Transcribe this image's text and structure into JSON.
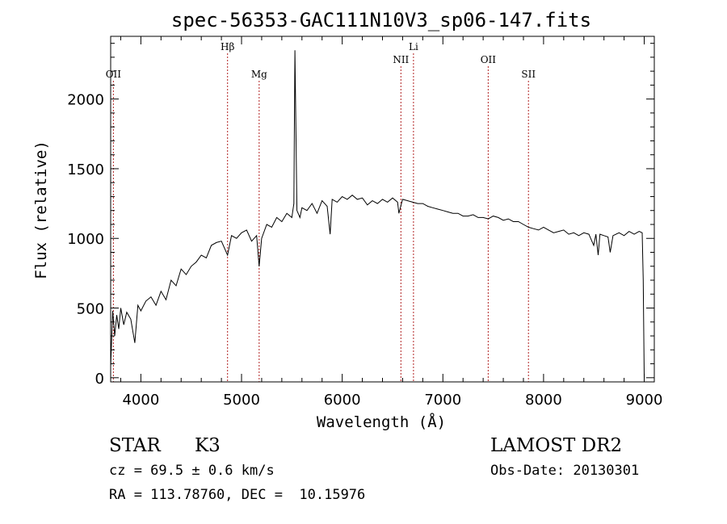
{
  "chart_data": {
    "type": "line",
    "title": "spec-56353-GAC111N10V3_sp06-147.fits",
    "xlabel": "Wavelength (Å)",
    "ylabel": "Flux (relative)",
    "xlim": [
      3700,
      9100
    ],
    "ylim": [
      -30,
      2450
    ],
    "xticks": [
      4000,
      5000,
      6000,
      7000,
      8000,
      9000
    ],
    "yticks": [
      0,
      500,
      1000,
      1500,
      2000
    ],
    "grid": false,
    "lines": [
      {
        "label": "OII",
        "x": 3727,
        "label_level": "low"
      },
      {
        "label": "Hβ",
        "x": 4861,
        "label_level": "high"
      },
      {
        "label": "Mg",
        "x": 5175,
        "label_level": "low"
      },
      {
        "label": "NII",
        "x": 6583,
        "label_level": "mid"
      },
      {
        "label": "Li",
        "x": 6708,
        "label_level": "high"
      },
      {
        "label": "OII",
        "x": 7450,
        "label_level": "mid"
      },
      {
        "label": "SII",
        "x": 7850,
        "label_level": "low"
      }
    ],
    "spectrum": {
      "x": [
        3700,
        3720,
        3740,
        3760,
        3780,
        3800,
        3830,
        3860,
        3900,
        3940,
        3970,
        4000,
        4050,
        4100,
        4150,
        4200,
        4250,
        4300,
        4350,
        4400,
        4450,
        4500,
        4550,
        4600,
        4650,
        4700,
        4750,
        4800,
        4861,
        4900,
        4950,
        5000,
        5050,
        5100,
        5150,
        5175,
        5200,
        5250,
        5300,
        5350,
        5400,
        5450,
        5500,
        5520,
        5530,
        5550,
        5580,
        5600,
        5650,
        5700,
        5750,
        5800,
        5850,
        5880,
        5900,
        5950,
        6000,
        6050,
        6100,
        6150,
        6200,
        6250,
        6300,
        6350,
        6400,
        6450,
        6500,
        6550,
        6563,
        6600,
        6650,
        6700,
        6750,
        6800,
        6850,
        6900,
        6950,
        7000,
        7050,
        7100,
        7150,
        7200,
        7250,
        7300,
        7350,
        7400,
        7450,
        7500,
        7550,
        7600,
        7650,
        7700,
        7750,
        7800,
        7850,
        7900,
        7950,
        8000,
        8050,
        8100,
        8150,
        8200,
        8250,
        8300,
        8350,
        8400,
        8450,
        8498,
        8520,
        8542,
        8560,
        8600,
        8640,
        8662,
        8690,
        8750,
        8800,
        8850,
        8900,
        8950,
        8980,
        8990,
        9000
      ],
      "y": [
        80,
        480,
        300,
        450,
        350,
        500,
        380,
        470,
        420,
        250,
        520,
        480,
        550,
        580,
        520,
        620,
        560,
        700,
        660,
        780,
        740,
        800,
        830,
        880,
        860,
        950,
        970,
        980,
        880,
        1020,
        1000,
        1040,
        1060,
        980,
        1020,
        800,
        1000,
        1100,
        1080,
        1150,
        1120,
        1180,
        1150,
        1250,
        2350,
        1200,
        1150,
        1220,
        1200,
        1250,
        1180,
        1270,
        1230,
        1030,
        1280,
        1260,
        1300,
        1280,
        1310,
        1280,
        1290,
        1240,
        1270,
        1250,
        1280,
        1260,
        1290,
        1260,
        1180,
        1280,
        1270,
        1260,
        1250,
        1250,
        1230,
        1220,
        1210,
        1200,
        1190,
        1180,
        1180,
        1160,
        1160,
        1170,
        1150,
        1150,
        1140,
        1160,
        1150,
        1130,
        1140,
        1120,
        1120,
        1100,
        1080,
        1070,
        1060,
        1080,
        1060,
        1040,
        1050,
        1060,
        1030,
        1040,
        1020,
        1040,
        1030,
        950,
        1030,
        880,
        1030,
        1020,
        1010,
        900,
        1020,
        1040,
        1020,
        1050,
        1030,
        1050,
        1040,
        700,
        0
      ]
    }
  },
  "info": {
    "class": "STAR",
    "subclass": "K3",
    "survey": "LAMOST DR2",
    "cz": "cz = 69.5 ± 0.6 km/s",
    "obsdate": "Obs-Date: 20130301",
    "radec": "RA = 113.78760, DEC =  10.15976"
  }
}
